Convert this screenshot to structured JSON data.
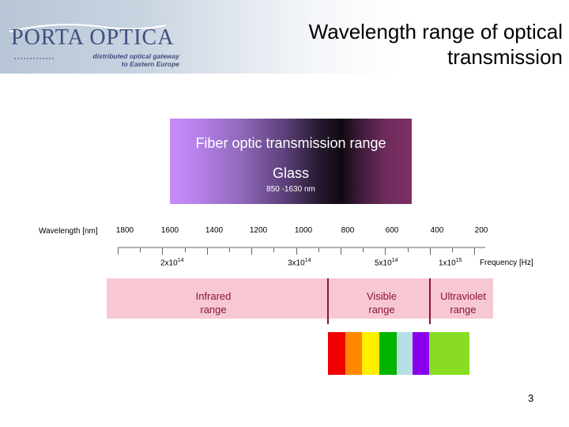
{
  "header": {
    "logo_main": "PORTA OPTICA",
    "logo_sub_line1": "distributed optical gateway",
    "logo_sub_line2": "to Eastern Europe",
    "title_line1": "Wavelength range of optical",
    "title_line2": "transmission"
  },
  "fiber_box": {
    "title": "Fiber optic transmission range",
    "material": "Glass",
    "range": "850 -1630 nm"
  },
  "wavelength_axis": {
    "label": "Wavelength [nm]",
    "ticks": [
      "1800",
      "1600",
      "1400",
      "1200",
      "1000",
      "800",
      "600",
      "400",
      "200"
    ]
  },
  "frequency_axis": {
    "unit_label": "Frequency [Hz]",
    "ticks": [
      {
        "mantissa": "2x10",
        "exponent": "14"
      },
      {
        "mantissa": "3x10",
        "exponent": "14"
      },
      {
        "mantissa": "5x10",
        "exponent": "14"
      },
      {
        "mantissa": "1x10",
        "exponent": "15"
      }
    ]
  },
  "bands": {
    "infrared": [
      "Infrared",
      "range"
    ],
    "visible": [
      "Visible",
      "range"
    ],
    "ultraviolet": [
      "Ultraviolet",
      "range"
    ]
  },
  "spectrum_colors": [
    "#f00000",
    "#ff8800",
    "#ffee00",
    "#00b400",
    "#b6dfe4",
    "#8800ee",
    "#88dd22"
  ],
  "colors": {
    "band_background": "#f7c8d2",
    "band_text": "#8a1435"
  },
  "page_number": "3"
}
